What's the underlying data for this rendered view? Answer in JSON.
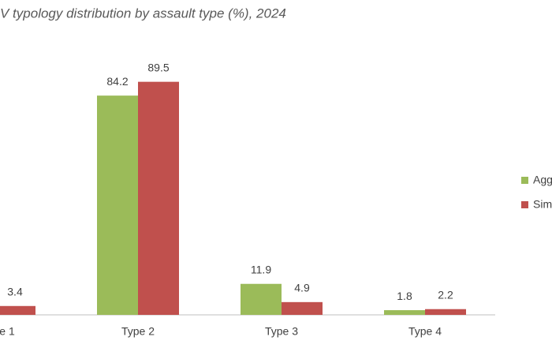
{
  "chart_data": {
    "type": "bar",
    "title": "V typology distribution by assault type (%), 2024",
    "categories": [
      "e 1",
      "Type 2",
      "Type 3",
      "Type 4"
    ],
    "series": [
      {
        "name": "Agg",
        "color": "#9bbb59",
        "values": [
          null,
          84.2,
          11.9,
          1.8
        ]
      },
      {
        "name": "Sim",
        "color": "#c0504d",
        "values": [
          3.4,
          89.5,
          4.9,
          2.2
        ]
      }
    ],
    "ylim": [
      0,
      100
    ],
    "legend": "right"
  }
}
